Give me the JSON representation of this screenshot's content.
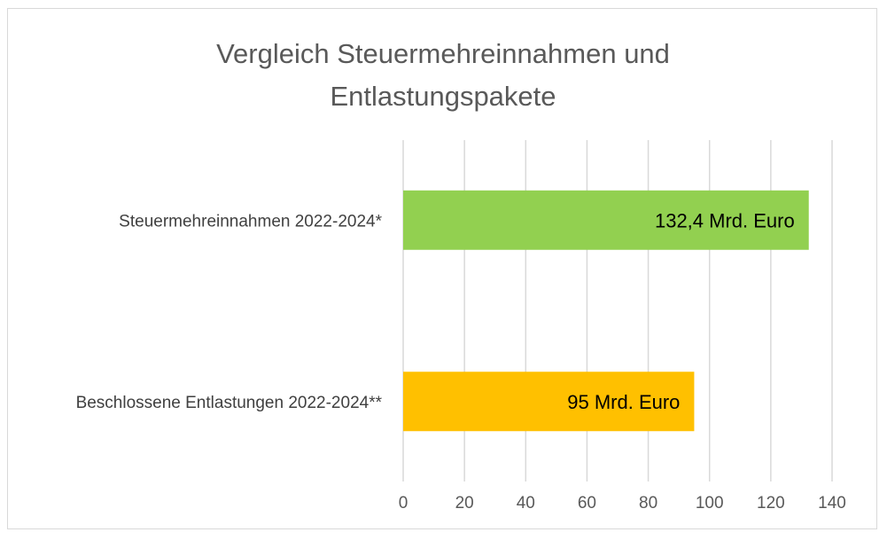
{
  "chart_data": {
    "type": "bar",
    "orientation": "horizontal",
    "title_lines": [
      "Vergleich Steuermehreinnahmen und",
      "Entlastungspakete"
    ],
    "categories": [
      "Steuermehreinnahmen 2022-2024*",
      "Beschlossene Entlastungen 2022-2024**"
    ],
    "values": [
      132.4,
      95
    ],
    "data_labels": [
      "132,4 Mrd. Euro",
      "95 Mrd. Euro"
    ],
    "bar_colors": [
      "#92d050",
      "#ffc000"
    ],
    "xlim": [
      0,
      140
    ],
    "xticks": [
      0,
      20,
      40,
      60,
      80,
      100,
      120,
      140
    ],
    "grid": true,
    "xlabel": "",
    "ylabel": ""
  }
}
